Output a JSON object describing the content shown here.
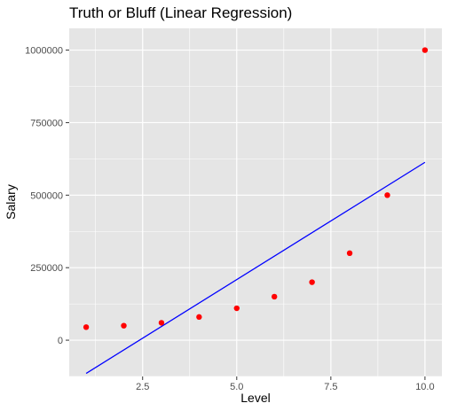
{
  "chart_data": {
    "type": "scatter",
    "title": "Truth or Bluff (Linear Regression)",
    "xlabel": "Level",
    "ylabel": "Salary",
    "xlim": [
      0.55,
      10.45
    ],
    "ylim": [
      -125000,
      1075000
    ],
    "x_ticks": [
      2.5,
      5.0,
      7.5,
      10.0
    ],
    "x_tick_labels": [
      "2.5",
      "5.0",
      "7.5",
      "10.0"
    ],
    "y_ticks": [
      0,
      250000,
      500000,
      750000,
      1000000
    ],
    "y_tick_labels": [
      "0",
      "250000",
      "500000",
      "750000",
      "1000000"
    ],
    "grid": true,
    "panel_background": "#e5e5e5",
    "gridline_color": "#ffffff",
    "series": [
      {
        "kind": "points",
        "color": "#ff0000",
        "x": [
          1,
          2,
          3,
          4,
          5,
          6,
          7,
          8,
          9,
          10
        ],
        "y": [
          45000,
          50000,
          60000,
          80000,
          110000,
          150000,
          200000,
          300000,
          500000,
          1000000
        ]
      },
      {
        "kind": "line",
        "color": "#0000ff",
        "x": [
          1,
          10
        ],
        "y": [
          -114454.55,
          613181.82
        ]
      }
    ]
  }
}
